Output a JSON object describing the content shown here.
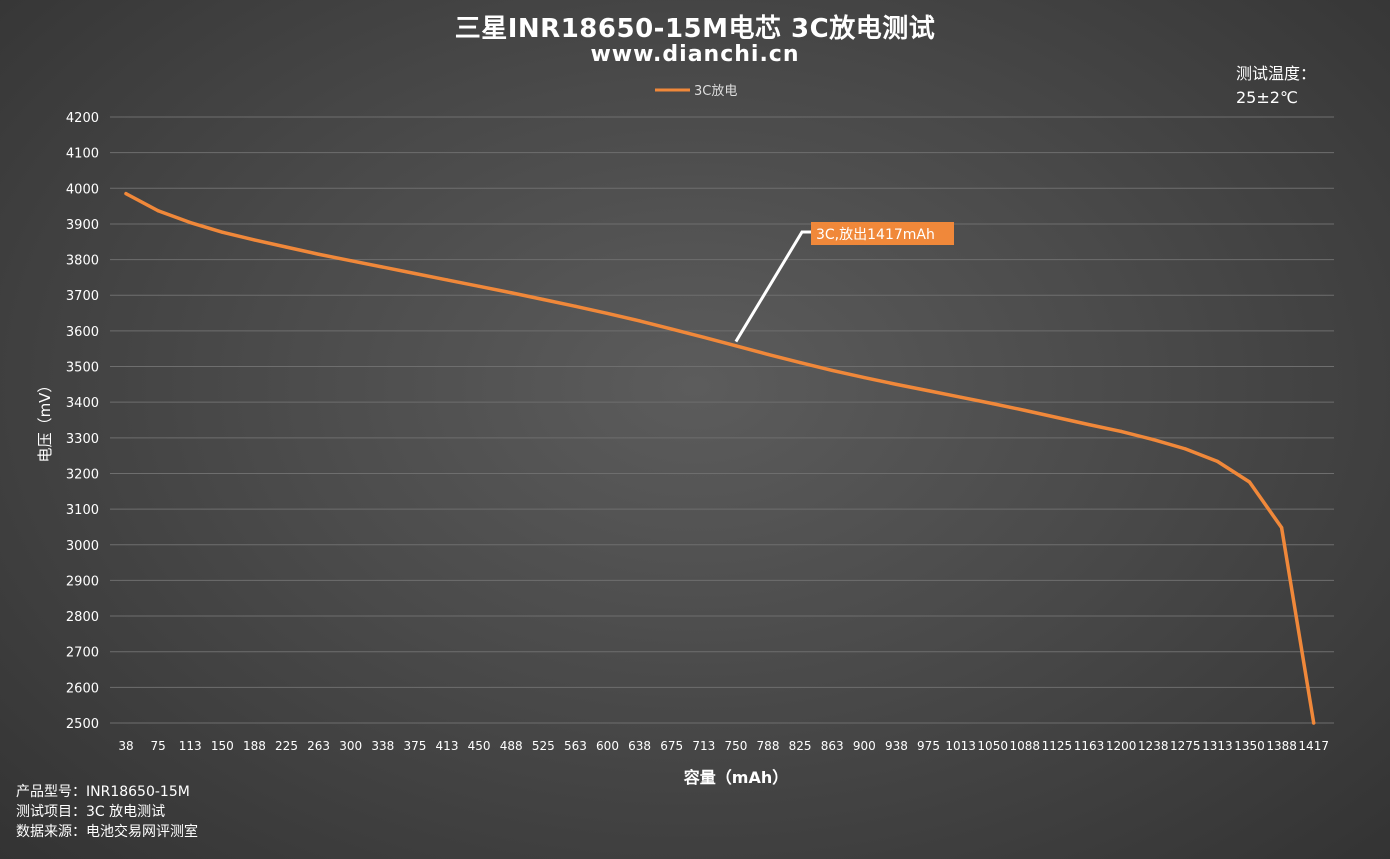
{
  "title": "三星INR18650-15M电芯 3C放电测试",
  "subtitle": "www.dianchi.cn",
  "test_conditions": {
    "label": "测试温度：",
    "value": "25±2℃"
  },
  "footer": {
    "model": "产品型号：INR18650-15M",
    "test_item": "测试项目：3C 放电测试",
    "source": "数据来源：电池交易网评测室"
  },
  "colors": {
    "series": "#f0883a",
    "grid": "#6e6e6e",
    "callout_line": "#ffffff"
  },
  "chart_data": {
    "type": "line",
    "xlabel": "容量（mAh）",
    "ylabel": "电压（mV）",
    "ylim": [
      2500,
      4200
    ],
    "yticks": [
      4200,
      4100,
      4000,
      3900,
      3800,
      3700,
      3600,
      3500,
      3400,
      3300,
      3200,
      3100,
      3000,
      2900,
      2800,
      2700,
      2600,
      2500
    ],
    "categories": [
      "38",
      "75",
      "113",
      "150",
      "188",
      "225",
      "263",
      "300",
      "338",
      "375",
      "413",
      "450",
      "488",
      "525",
      "563",
      "600",
      "638",
      "675",
      "713",
      "750",
      "788",
      "825",
      "863",
      "900",
      "938",
      "975",
      "1013",
      "1050",
      "1088",
      "1125",
      "1163",
      "1200",
      "1238",
      "1275",
      "1313",
      "1350",
      "1388",
      "1417"
    ],
    "grid": true,
    "legend_position": "top-center",
    "series": [
      {
        "name": "3C放电",
        "values": [
          3985,
          3937,
          3904,
          3877,
          3855,
          3835,
          3815,
          3797,
          3779,
          3761,
          3743,
          3725,
          3707,
          3688,
          3669,
          3649,
          3628,
          3605,
          3582,
          3558,
          3534,
          3511,
          3489,
          3469,
          3450,
          3432,
          3414,
          3396,
          3377,
          3357,
          3337,
          3318,
          3295,
          3269,
          3234,
          3176,
          3048,
          2500
        ]
      }
    ],
    "annotation": {
      "text": "3C,放出1417mAh",
      "category": "750",
      "value": 3570
    }
  }
}
